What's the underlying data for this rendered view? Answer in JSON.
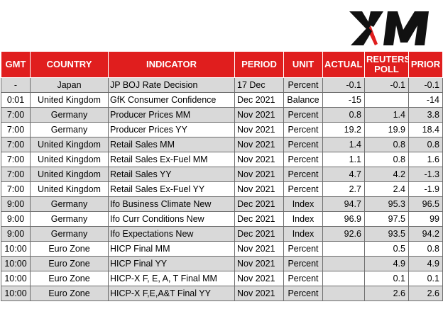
{
  "brand": {
    "logo_text": "XM",
    "accent": "#e01e1e"
  },
  "table": {
    "headers": {
      "gmt": "GMT",
      "country": "COUNTRY",
      "indicator": "INDICATOR",
      "period": "PERIOD",
      "unit": "UNIT",
      "actual": "ACTUAL",
      "poll_line1": "REUTERS",
      "poll_line2": "POLL",
      "prior": "PRIOR"
    },
    "rows": [
      {
        "gmt": "-",
        "country": "Japan",
        "indicator": "JP BOJ Rate Decision",
        "period": "17 Dec",
        "unit": "Percent",
        "actual": "-0.1",
        "poll": "-0.1",
        "prior": "-0.1"
      },
      {
        "gmt": "0:01",
        "country": "United Kingdom",
        "indicator": "GfK Consumer Confidence",
        "period": "Dec 2021",
        "unit": "Balance",
        "actual": "-15",
        "poll": "",
        "prior": "-14"
      },
      {
        "gmt": "7:00",
        "country": "Germany",
        "indicator": "Producer Prices MM",
        "period": "Nov 2021",
        "unit": "Percent",
        "actual": "0.8",
        "poll": "1.4",
        "prior": "3.8"
      },
      {
        "gmt": "7:00",
        "country": "Germany",
        "indicator": "Producer Prices YY",
        "period": "Nov 2021",
        "unit": "Percent",
        "actual": "19.2",
        "poll": "19.9",
        "prior": "18.4"
      },
      {
        "gmt": "7:00",
        "country": "United Kingdom",
        "indicator": "Retail Sales MM",
        "period": "Nov 2021",
        "unit": "Percent",
        "actual": "1.4",
        "poll": "0.8",
        "prior": "0.8"
      },
      {
        "gmt": "7:00",
        "country": "United Kingdom",
        "indicator": "Retail Sales Ex-Fuel MM",
        "period": "Nov 2021",
        "unit": "Percent",
        "actual": "1.1",
        "poll": "0.8",
        "prior": "1.6"
      },
      {
        "gmt": "7:00",
        "country": "United Kingdom",
        "indicator": "Retail Sales YY",
        "period": "Nov 2021",
        "unit": "Percent",
        "actual": "4.7",
        "poll": "4.2",
        "prior": "-1.3"
      },
      {
        "gmt": "7:00",
        "country": "United Kingdom",
        "indicator": "Retail Sales Ex-Fuel YY",
        "period": "Nov 2021",
        "unit": "Percent",
        "actual": "2.7",
        "poll": "2.4",
        "prior": "-1.9"
      },
      {
        "gmt": "9:00",
        "country": "Germany",
        "indicator": "Ifo Business Climate New",
        "period": "Dec 2021",
        "unit": "Index",
        "actual": "94.7",
        "poll": "95.3",
        "prior": "96.5"
      },
      {
        "gmt": "9:00",
        "country": "Germany",
        "indicator": "Ifo Curr Conditions New",
        "period": "Dec 2021",
        "unit": "Index",
        "actual": "96.9",
        "poll": "97.5",
        "prior": "99"
      },
      {
        "gmt": "9:00",
        "country": "Germany",
        "indicator": "Ifo Expectations New",
        "period": "Dec 2021",
        "unit": "Index",
        "actual": "92.6",
        "poll": "93.5",
        "prior": "94.2"
      },
      {
        "gmt": "10:00",
        "country": "Euro Zone",
        "indicator": "HICP Final MM",
        "period": "Nov 2021",
        "unit": "Percent",
        "actual": "",
        "poll": "0.5",
        "prior": "0.8"
      },
      {
        "gmt": "10:00",
        "country": "Euro Zone",
        "indicator": "HICP Final YY",
        "period": "Nov 2021",
        "unit": "Percent",
        "actual": "",
        "poll": "4.9",
        "prior": "4.9"
      },
      {
        "gmt": "10:00",
        "country": "Euro Zone",
        "indicator": "HICP-X F, E, A, T Final MM",
        "period": "Nov 2021",
        "unit": "Percent",
        "actual": "",
        "poll": "0.1",
        "prior": "0.1"
      },
      {
        "gmt": "10:00",
        "country": "Euro Zone",
        "indicator": "HICP-X F,E,A&T Final YY",
        "period": "Nov 2021",
        "unit": "Percent",
        "actual": "",
        "poll": "2.6",
        "prior": "2.6"
      }
    ]
  }
}
